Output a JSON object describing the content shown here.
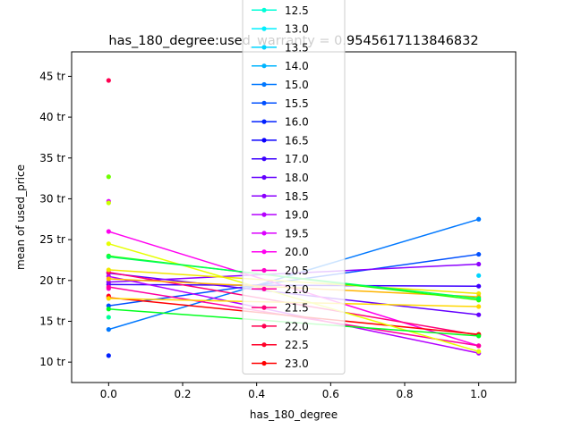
{
  "chart_data": {
    "type": "line",
    "title": "has_180_degree:used_warranty = 0.9545617113846832",
    "xlabel": "has_180_degree",
    "ylabel": "mean of used_price",
    "xlim": [
      -0.1,
      1.1
    ],
    "ylim": [
      7.5,
      48.0
    ],
    "xticks": [
      0.0,
      0.2,
      0.4,
      0.6,
      0.8,
      1.0
    ],
    "xtick_labels": [
      "0.0",
      "0.2",
      "0.4",
      "0.6",
      "0.8",
      "1.0"
    ],
    "yticks": [
      10,
      15,
      20,
      25,
      30,
      35,
      40,
      45
    ],
    "ytick_labels": [
      "10 tr",
      "15 tr",
      "20 tr",
      "25 tr",
      "30 tr",
      "35 tr",
      "40 tr",
      "45 tr"
    ],
    "grid": false,
    "legend_position": "top-center (overflowing above plot)",
    "series": [
      {
        "name": "12.5",
        "color": "#00ffd7",
        "x": [
          0,
          1
        ],
        "y": [
          null,
          null
        ]
      },
      {
        "name": "13.0",
        "color": "#00f0ff",
        "x": [
          0,
          1
        ],
        "y": [
          null,
          null
        ]
      },
      {
        "name": "13.5",
        "color": "#00d4ff",
        "x": [
          0,
          1
        ],
        "y": [
          null,
          20.6
        ]
      },
      {
        "name": "14.0",
        "color": "#00b4ff",
        "x": [
          0,
          1
        ],
        "y": [
          null,
          null
        ]
      },
      {
        "name": "15.0",
        "color": "#0078ff",
        "x": [
          0,
          1
        ],
        "y": [
          14.0,
          27.5
        ]
      },
      {
        "name": "15.5",
        "color": "#0050ff",
        "x": [
          0,
          1
        ],
        "y": [
          16.9,
          23.2
        ]
      },
      {
        "name": "16.0",
        "color": "#0020ff",
        "x": [
          0,
          1
        ],
        "y": [
          10.8,
          null
        ]
      },
      {
        "name": "16.5",
        "color": "#0a00ff",
        "x": [
          0,
          1
        ],
        "y": [
          null,
          null
        ]
      },
      {
        "name": "17.0",
        "color": "#3c00ff",
        "x": [
          0,
          1
        ],
        "y": [
          19.5,
          19.3
        ]
      },
      {
        "name": "18.0",
        "color": "#6400ff",
        "x": [
          0,
          1
        ],
        "y": [
          20.9,
          15.8
        ]
      },
      {
        "name": "18.5",
        "color": "#8c00ff",
        "x": [
          0,
          1
        ],
        "y": [
          19.8,
          22.0
        ]
      },
      {
        "name": "19.0",
        "color": "#b400ff",
        "x": [
          0,
          1
        ],
        "y": [
          20.5,
          11.1
        ]
      },
      {
        "name": "19.5",
        "color": "#dc00ff",
        "x": [
          0,
          1
        ],
        "y": [
          29.7,
          null
        ]
      },
      {
        "name": "20.0",
        "color": "#ff00f0",
        "x": [
          0,
          1
        ],
        "y": [
          26.0,
          12.0
        ]
      },
      {
        "name": "20.5",
        "color": "#ff00c8",
        "x": [
          0,
          1
        ],
        "y": [
          19.0,
          null
        ]
      },
      {
        "name": "21.0",
        "color": "#ff00a0",
        "x": [
          0,
          1
        ],
        "y": [
          19.2,
          12.0
        ]
      },
      {
        "name": "21.5",
        "color": "#ff0078",
        "x": [
          0,
          1
        ],
        "y": [
          21.0,
          13.3
        ]
      },
      {
        "name": "22.0",
        "color": "#ff0050",
        "x": [
          0,
          1
        ],
        "y": [
          44.5,
          null
        ]
      },
      {
        "name": "22.5",
        "color": "#ff0028",
        "x": [
          0,
          1
        ],
        "y": [
          18.1,
          null
        ]
      },
      {
        "name": "23.0",
        "color": "#ff0000",
        "x": [
          0,
          1
        ],
        "y": [
          17.9,
          13.4
        ]
      },
      {
        "name": "",
        "color": "#ffd700",
        "x": [
          0,
          1
        ],
        "y": [
          17.8,
          16.8
        ]
      },
      {
        "name": "",
        "color": "#e6ff00",
        "x": [
          0,
          1
        ],
        "y": [
          24.5,
          11.3
        ]
      },
      {
        "name": "",
        "color": "#f0e600",
        "x": [
          0,
          1
        ],
        "y": [
          21.3,
          18.4
        ]
      },
      {
        "name": "",
        "color": "#ffb400",
        "x": [
          0,
          1
        ],
        "y": [
          20.2,
          18.0
        ]
      },
      {
        "name": "",
        "color": "#6fff00",
        "x": [
          0,
          1
        ],
        "y": [
          32.7,
          null
        ]
      },
      {
        "name": "",
        "color": "#2aff00",
        "x": [
          0,
          1
        ],
        "y": [
          23.0,
          17.6
        ]
      },
      {
        "name": "",
        "color": "#00ff5a",
        "x": [
          0,
          1
        ],
        "y": [
          22.9,
          17.8
        ]
      },
      {
        "name": "",
        "color": "#00ff9a",
        "x": [
          0,
          1
        ],
        "y": [
          15.5,
          null
        ]
      },
      {
        "name": "",
        "color": "#00ff1e",
        "x": [
          0,
          1
        ],
        "y": [
          16.5,
          13.2
        ]
      },
      {
        "name": "",
        "color": "#c8ff00",
        "x": [
          0,
          1
        ],
        "y": [
          29.5,
          null
        ]
      }
    ]
  }
}
